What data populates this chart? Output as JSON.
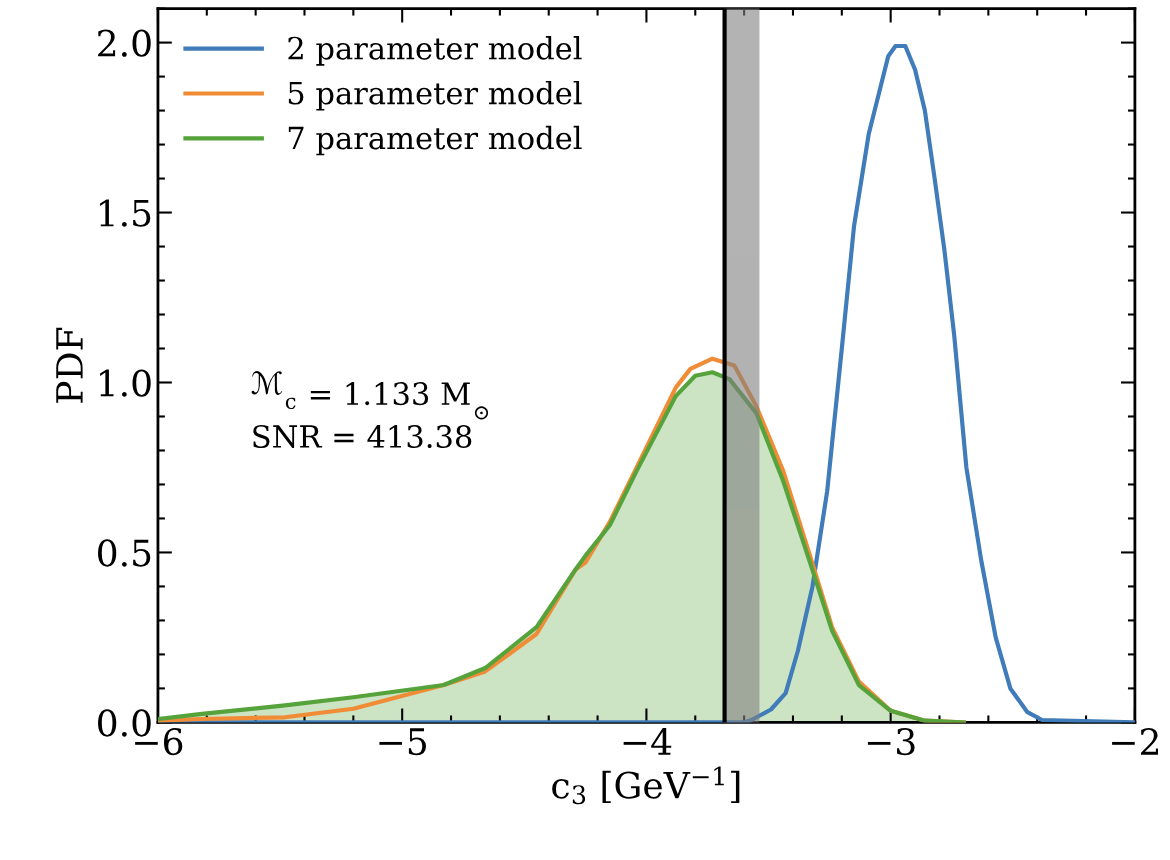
{
  "chart_data": {
    "type": "line",
    "xlabel": "c$_{3}$ [GeV$^{−1}$]",
    "ylabel": "PDF",
    "xlim": [
      -6,
      -2
    ],
    "xticks": [
      {
        "value": -6,
        "label": "−6"
      },
      {
        "value": -5,
        "label": "−5"
      },
      {
        "value": -4,
        "label": "−4"
      },
      {
        "value": -3,
        "label": "−3"
      },
      {
        "value": -2,
        "label": "−2"
      }
    ],
    "ylim": [
      0,
      2.1
    ],
    "yticks": [
      {
        "value": 0,
        "label": "0.0"
      },
      {
        "value": 0.5,
        "label": "0.5"
      },
      {
        "value": 1,
        "label": "1.0"
      },
      {
        "value": 1.5,
        "label": "1.5"
      },
      {
        "value": 2,
        "label": "2.0"
      }
    ],
    "legend": "top left",
    "grid": false,
    "series": [
      {
        "name": "2 parameter model",
        "color": "#3f7cb9",
        "x": [
          -6,
          -3.6,
          -3.57,
          -3.49,
          -3.43,
          -3.38,
          -3.32,
          -3.26,
          -3.2,
          -3.15,
          -3.09,
          -3.01,
          -2.98,
          -2.94,
          -2.9,
          -2.86,
          -2.82,
          -2.78,
          -2.74,
          -2.69,
          -2.63,
          -2.57,
          -2.51,
          -2.44,
          -2.38,
          -2
        ],
        "values": [
          0,
          0,
          0.007,
          0.038,
          0.086,
          0.21,
          0.4,
          0.68,
          1.1,
          1.46,
          1.73,
          1.96,
          1.99,
          1.99,
          1.92,
          1.8,
          1.6,
          1.39,
          1.14,
          0.75,
          0.48,
          0.25,
          0.1,
          0.03,
          0.007,
          0
        ]
      },
      {
        "name": "5 parameter model",
        "color": "#f08c35",
        "x": [
          -6,
          -5.82,
          -5.48,
          -5.2,
          -4.83,
          -4.66,
          -4.45,
          -4.29,
          -4.25,
          -4.15,
          -4.04,
          -3.88,
          -3.82,
          -3.73,
          -3.64,
          -3.55,
          -3.44,
          -3.33,
          -3.24,
          -3.13,
          -3.0,
          -2.86,
          -2.7
        ],
        "values": [
          0.005,
          0.01,
          0.015,
          0.04,
          0.11,
          0.15,
          0.26,
          0.45,
          0.47,
          0.59,
          0.75,
          0.985,
          1.04,
          1.07,
          1.05,
          0.93,
          0.74,
          0.49,
          0.28,
          0.12,
          0.034,
          0.005,
          0
        ]
      },
      {
        "name": "7 parameter model",
        "type": "area",
        "color": "#56a33c",
        "x": [
          -6,
          -5.82,
          -5.48,
          -5.2,
          -4.83,
          -4.66,
          -4.45,
          -4.29,
          -4.25,
          -4.15,
          -4.04,
          -3.88,
          -3.8,
          -3.73,
          -3.66,
          -3.55,
          -3.44,
          -3.33,
          -3.24,
          -3.13,
          -3.0,
          -2.86,
          -2.7
        ],
        "values": [
          0.01,
          0.025,
          0.05,
          0.074,
          0.11,
          0.16,
          0.28,
          0.45,
          0.49,
          0.58,
          0.74,
          0.96,
          1.02,
          1.03,
          1.01,
          0.91,
          0.71,
          0.47,
          0.27,
          0.11,
          0.034,
          0.005,
          0
        ]
      }
    ],
    "ref_lines": [
      {
        "axis": "x",
        "value": -3.68,
        "color": "#000000"
      }
    ],
    "bands": [
      {
        "axis": "x",
        "from": -3.68,
        "to": -3.54,
        "color": "#808080"
      }
    ],
    "annotations": [
      "ℳ$_{c}$ = 1.133 M$_{⊙}$",
      "SNR = 413.38"
    ]
  }
}
